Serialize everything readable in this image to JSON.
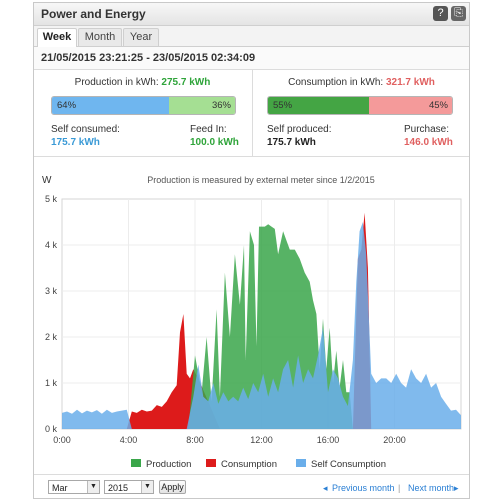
{
  "header": {
    "title": "Power and Energy",
    "help_icon": "?",
    "export_icon": "⎘"
  },
  "tabs": [
    {
      "label": "Week",
      "active": true
    },
    {
      "label": "Month",
      "active": false
    },
    {
      "label": "Year",
      "active": false
    }
  ],
  "date_range": "21/05/2015 23:21:25 - 23/05/2015 02:34:09",
  "production": {
    "label": "Production in kWh:",
    "value": "275.7 kWh",
    "bar_left": {
      "text": "64%",
      "fraction": 0.64,
      "color": "#6fb6ef"
    },
    "bar_right": {
      "text": "36%",
      "fraction": 0.36,
      "color": "#a5df93"
    },
    "left_label": "Self consumed:",
    "left_value": "175.7 kWh",
    "right_label": "Feed In:",
    "right_value": "100.0 kWh"
  },
  "consumption": {
    "label": "Consumption in kWh:",
    "value": "321.7 kWh",
    "bar_left": {
      "text": "55%",
      "fraction": 0.55,
      "color": "#44a544"
    },
    "bar_right": {
      "text": "45%",
      "fraction": 0.45,
      "color": "#f49a9a"
    },
    "left_label": "Self produced:",
    "left_value": "175.7 kWh",
    "right_label": "Purchase:",
    "right_value": "146.0 kWh"
  },
  "colors": {
    "production": "#3aa64a",
    "consumption": "#dd1b1b",
    "self_consumption": "#6aaeea",
    "self_value": "#3a9ad6",
    "green_value": "#2fa43a",
    "red_value": "#e06060"
  },
  "chart_data": {
    "type": "area",
    "title": "Production is measured by external meter since 1/2/2015",
    "ylabel": "W",
    "x_ticks": [
      "0:00",
      "4:00",
      "8:00",
      "12:00",
      "16:00",
      "20:00"
    ],
    "y_ticks": [
      "0 k",
      "1 k",
      "2 k",
      "3 k",
      "4 k",
      "5 k"
    ],
    "xlim": [
      0,
      24
    ],
    "ylim": [
      0,
      5000
    ],
    "legend_position": "bottom",
    "series": [
      {
        "name": "Production",
        "color": "#3aa64a",
        "x": [
          0,
          7.3,
          7.6,
          8.0,
          8.4,
          8.7,
          9.0,
          9.3,
          9.5,
          9.8,
          10.1,
          10.4,
          10.7,
          10.95,
          11.05,
          11.3,
          11.55,
          11.7,
          11.85,
          12.0,
          12.2,
          12.4,
          12.6,
          12.8,
          13.0,
          13.3,
          13.5,
          13.7,
          14.0,
          14.3,
          14.6,
          14.9,
          15.1,
          15.3,
          15.5,
          15.7,
          15.9,
          16.1,
          16.3,
          16.5,
          16.7,
          16.9,
          17.1,
          17.3,
          17.5,
          24
        ],
        "y": [
          0,
          0,
          0,
          1600,
          800,
          2000,
          600,
          2600,
          700,
          3400,
          2000,
          3800,
          2700,
          4000,
          1500,
          4300,
          4000,
          1800,
          4400,
          4400,
          4400,
          4450,
          4400,
          4350,
          3800,
          4300,
          4100,
          3900,
          3900,
          3700,
          3400,
          3200,
          2800,
          2500,
          1300,
          2400,
          1300,
          2200,
          1000,
          1700,
          900,
          1500,
          800,
          800,
          0,
          0
        ]
      },
      {
        "name": "Consumption",
        "color": "#dd1b1b",
        "x": [
          0,
          3.9,
          4.2,
          4.5,
          4.8,
          5.1,
          5.4,
          5.7,
          6.0,
          6.3,
          6.6,
          6.9,
          7.1,
          7.3,
          7.5,
          7.7,
          7.9,
          8.2,
          9.5,
          11.0,
          13.0,
          15.0,
          17.0,
          17.5,
          17.8,
          18.0,
          18.2,
          18.4,
          18.6,
          24
        ],
        "y": [
          0,
          0,
          380,
          350,
          420,
          380,
          400,
          520,
          480,
          600,
          800,
          950,
          2100,
          2500,
          1200,
          1100,
          1300,
          1100,
          0,
          0,
          0,
          0,
          0,
          0,
          3700,
          3900,
          4700,
          3500,
          0,
          0
        ]
      },
      {
        "name": "Self Consumption",
        "color": "#6aaeea",
        "x": [
          0,
          0.3,
          0.6,
          0.9,
          1.2,
          1.5,
          1.8,
          2.1,
          2.4,
          2.7,
          3.0,
          3.3,
          3.6,
          3.9,
          4.2,
          4.6,
          5.0,
          5.5,
          6.0,
          6.5,
          7.0,
          7.5,
          7.9,
          8.2,
          8.5,
          8.8,
          9.1,
          9.4,
          9.7,
          10.0,
          10.3,
          10.6,
          10.9,
          11.2,
          11.5,
          11.8,
          12.1,
          12.4,
          12.7,
          13.0,
          13.3,
          13.6,
          13.9,
          14.2,
          14.5,
          14.8,
          15.1,
          15.4,
          15.7,
          16.0,
          16.3,
          16.6,
          16.9,
          17.2,
          17.5,
          17.7,
          17.9,
          18.1,
          18.3,
          18.6,
          18.9,
          19.2,
          19.5,
          19.8,
          20.1,
          20.4,
          20.7,
          21.0,
          21.3,
          21.6,
          21.9,
          22.2,
          22.5,
          22.8,
          23.1,
          23.4,
          23.7,
          24
        ],
        "y": [
          350,
          380,
          330,
          420,
          340,
          400,
          360,
          410,
          330,
          420,
          350,
          380,
          400,
          420,
          0,
          0,
          0,
          0,
          0,
          0,
          0,
          0,
          700,
          1400,
          700,
          600,
          1000,
          550,
          800,
          600,
          700,
          600,
          900,
          650,
          1000,
          800,
          1200,
          700,
          1100,
          800,
          1300,
          1500,
          900,
          1600,
          1000,
          1300,
          1100,
          1600,
          2200,
          800,
          1300,
          1100,
          700,
          500,
          1500,
          3200,
          4300,
          4500,
          3800,
          1200,
          1000,
          1100,
          1100,
          1000,
          1200,
          1000,
          900,
          1300,
          1100,
          1000,
          1200,
          900,
          1000,
          700,
          550,
          400,
          420,
          300
        ]
      }
    ]
  },
  "footer": {
    "month": "Mar",
    "year": "2015",
    "apply": "Apply",
    "prev": "Previous month",
    "sep": "|",
    "next": "Next month"
  }
}
